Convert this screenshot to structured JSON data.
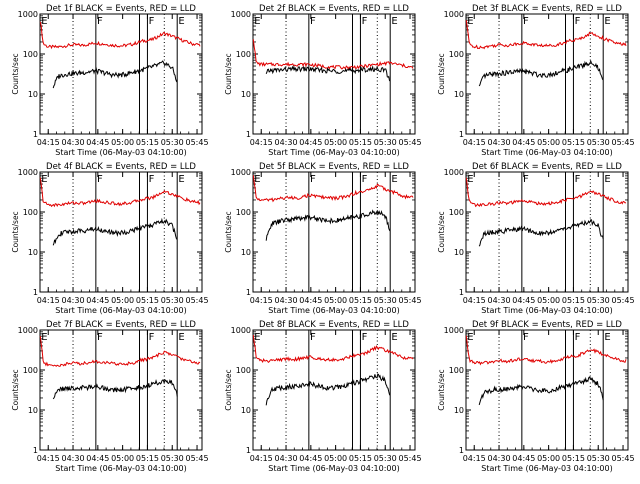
{
  "figure": {
    "ylabel": "Counts/sec",
    "xlabel": "Start Time (06-May-03 04:10:00)",
    "yticks": [
      "1",
      "10",
      "100",
      "1000"
    ],
    "xticks": [
      "04:15",
      "04:30",
      "04:45",
      "05:00",
      "05:15",
      "05:30",
      "05:45"
    ],
    "marker_labels": [
      "E",
      "F",
      "F",
      "E"
    ],
    "colors": {
      "events": "#000000",
      "lld": "#e00000"
    }
  },
  "chart_data": [
    {
      "type": "line",
      "title": "Det 1f BLACK = Events, RED = LLD",
      "xlim": [
        4.167,
        5.8
      ],
      "ylim": [
        1,
        1000
      ],
      "yscale": "log",
      "dotted_lines_hr": [
        4.5,
        5.42
      ],
      "solid_lines_hr": [
        4.73,
        5.17,
        5.25,
        5.55
      ],
      "series": [
        {
          "name": "LLD",
          "color": "red",
          "x": [
            4.17,
            4.2,
            4.25,
            4.35,
            4.5,
            4.6,
            4.73,
            4.9,
            5.0,
            5.1,
            5.2,
            5.3,
            5.42,
            5.5,
            5.6,
            5.7,
            5.78
          ],
          "y": [
            700,
            180,
            150,
            150,
            170,
            165,
            190,
            165,
            160,
            175,
            210,
            230,
            330,
            280,
            220,
            180,
            170
          ]
        },
        {
          "name": "Events",
          "color": "black",
          "x": [
            4.3,
            4.35,
            4.45,
            4.55,
            4.73,
            4.9,
            5.0,
            5.1,
            5.2,
            5.3,
            5.42,
            5.5,
            5.55
          ],
          "y": [
            15,
            28,
            32,
            33,
            38,
            30,
            30,
            35,
            40,
            48,
            60,
            45,
            20
          ]
        }
      ]
    },
    {
      "type": "line",
      "title": "Det 2f BLACK = Events, RED = LLD",
      "xlim": [
        4.167,
        5.8
      ],
      "ylim": [
        1,
        1000
      ],
      "yscale": "log",
      "dotted_lines_hr": [
        4.5,
        5.42
      ],
      "solid_lines_hr": [
        4.73,
        5.17,
        5.25,
        5.55
      ],
      "series": [
        {
          "name": "LLD",
          "color": "red",
          "x": [
            4.17,
            4.2,
            4.25,
            4.4,
            4.5,
            4.73,
            4.9,
            5.1,
            5.25,
            5.42,
            5.55,
            5.7,
            5.78
          ],
          "y": [
            250,
            60,
            55,
            55,
            55,
            55,
            48,
            46,
            48,
            55,
            60,
            50,
            45
          ]
        },
        {
          "name": "Events",
          "color": "black",
          "x": [
            4.3,
            4.32,
            4.45,
            4.6,
            4.73,
            4.9,
            5.1,
            5.25,
            5.42,
            5.5,
            5.55
          ],
          "y": [
            30,
            38,
            40,
            42,
            42,
            38,
            37,
            40,
            42,
            40,
            20
          ]
        }
      ]
    },
    {
      "type": "line",
      "title": "Det 3f BLACK = Events, RED = LLD",
      "xlim": [
        4.167,
        5.8
      ],
      "ylim": [
        1,
        1000
      ],
      "yscale": "log",
      "dotted_lines_hr": [
        4.5,
        5.42
      ],
      "solid_lines_hr": [
        4.73,
        5.17,
        5.25,
        5.55
      ],
      "series": [
        {
          "name": "LLD",
          "color": "red",
          "x": [
            4.17,
            4.2,
            4.25,
            4.35,
            4.5,
            4.6,
            4.73,
            4.9,
            5.0,
            5.1,
            5.2,
            5.3,
            5.42,
            5.5,
            5.6,
            5.7,
            5.78
          ],
          "y": [
            700,
            180,
            150,
            150,
            170,
            165,
            190,
            165,
            160,
            175,
            210,
            230,
            330,
            280,
            220,
            180,
            170
          ]
        },
        {
          "name": "Events",
          "color": "black",
          "x": [
            4.3,
            4.35,
            4.45,
            4.55,
            4.73,
            4.9,
            5.0,
            5.1,
            5.2,
            5.3,
            5.42,
            5.5,
            5.55
          ],
          "y": [
            15,
            28,
            32,
            33,
            38,
            30,
            30,
            35,
            40,
            48,
            60,
            45,
            20
          ]
        }
      ]
    },
    {
      "type": "line",
      "title": "Det 4f BLACK = Events, RED = LLD",
      "xlim": [
        4.167,
        5.8
      ],
      "ylim": [
        1,
        1000
      ],
      "yscale": "log",
      "dotted_lines_hr": [
        4.5,
        5.42
      ],
      "solid_lines_hr": [
        4.73,
        5.17,
        5.25,
        5.55
      ],
      "series": [
        {
          "name": "LLD",
          "color": "red",
          "x": [
            4.17,
            4.2,
            4.25,
            4.35,
            4.5,
            4.6,
            4.73,
            4.9,
            5.0,
            5.1,
            5.2,
            5.3,
            5.42,
            5.5,
            5.6,
            5.7,
            5.78
          ],
          "y": [
            700,
            180,
            150,
            150,
            170,
            165,
            190,
            165,
            160,
            175,
            210,
            230,
            330,
            280,
            220,
            180,
            170
          ]
        },
        {
          "name": "Events",
          "color": "black",
          "x": [
            4.3,
            4.35,
            4.45,
            4.55,
            4.73,
            4.9,
            5.0,
            5.1,
            5.2,
            5.3,
            5.42,
            5.5,
            5.55
          ],
          "y": [
            15,
            28,
            32,
            33,
            38,
            30,
            30,
            35,
            40,
            48,
            60,
            45,
            20
          ]
        }
      ]
    },
    {
      "type": "line",
      "title": "Det 5f BLACK = Events, RED = LLD",
      "xlim": [
        4.167,
        5.8
      ],
      "ylim": [
        1,
        1000
      ],
      "yscale": "log",
      "dotted_lines_hr": [
        4.5,
        5.42
      ],
      "solid_lines_hr": [
        4.73,
        5.17,
        5.25,
        5.55
      ],
      "series": [
        {
          "name": "LLD",
          "color": "red",
          "x": [
            4.17,
            4.2,
            4.25,
            4.35,
            4.5,
            4.6,
            4.73,
            4.9,
            5.0,
            5.1,
            5.2,
            5.3,
            5.42,
            5.5,
            5.6,
            5.7,
            5.78
          ],
          "y": [
            800,
            220,
            200,
            200,
            230,
            220,
            260,
            230,
            220,
            240,
            300,
            330,
            450,
            380,
            300,
            240,
            230
          ]
        },
        {
          "name": "Events",
          "color": "black",
          "x": [
            4.3,
            4.35,
            4.45,
            4.55,
            4.73,
            4.9,
            5.0,
            5.1,
            5.2,
            5.3,
            5.42,
            5.5,
            5.55
          ],
          "y": [
            20,
            50,
            60,
            65,
            75,
            62,
            60,
            68,
            75,
            85,
            100,
            80,
            35
          ]
        }
      ]
    },
    {
      "type": "line",
      "title": "Det 6f BLACK = Events, RED = LLD",
      "xlim": [
        4.167,
        5.8
      ],
      "ylim": [
        1,
        1000
      ],
      "yscale": "log",
      "dotted_lines_hr": [
        4.5,
        5.42
      ],
      "solid_lines_hr": [
        4.73,
        5.17,
        5.25,
        5.55
      ],
      "series": [
        {
          "name": "LLD",
          "color": "red",
          "x": [
            4.17,
            4.2,
            4.25,
            4.35,
            4.5,
            4.6,
            4.73,
            4.9,
            5.0,
            5.1,
            5.2,
            5.3,
            5.42,
            5.5,
            5.6,
            5.7,
            5.78
          ],
          "y": [
            700,
            180,
            150,
            150,
            170,
            165,
            190,
            165,
            160,
            175,
            210,
            230,
            330,
            280,
            220,
            180,
            170
          ]
        },
        {
          "name": "Events",
          "color": "black",
          "x": [
            4.3,
            4.35,
            4.45,
            4.55,
            4.73,
            4.9,
            5.0,
            5.1,
            5.2,
            5.3,
            5.42,
            5.5,
            5.55
          ],
          "y": [
            15,
            28,
            32,
            33,
            38,
            30,
            30,
            35,
            40,
            48,
            60,
            45,
            20
          ]
        }
      ]
    },
    {
      "type": "line",
      "title": "Det 7f BLACK = Events, RED = LLD",
      "xlim": [
        4.167,
        5.8
      ],
      "ylim": [
        1,
        1000
      ],
      "yscale": "log",
      "dotted_lines_hr": [
        4.5,
        5.42
      ],
      "solid_lines_hr": [
        4.73,
        5.17,
        5.25,
        5.55
      ],
      "series": [
        {
          "name": "LLD",
          "color": "red",
          "x": [
            4.17,
            4.2,
            4.25,
            4.35,
            4.5,
            4.6,
            4.73,
            4.9,
            5.0,
            5.1,
            5.2,
            5.3,
            5.42,
            5.5,
            5.6,
            5.7,
            5.78
          ],
          "y": [
            700,
            160,
            130,
            130,
            150,
            145,
            165,
            145,
            140,
            150,
            180,
            200,
            280,
            240,
            190,
            160,
            150
          ]
        },
        {
          "name": "Events",
          "color": "black",
          "x": [
            4.3,
            4.35,
            4.45,
            4.55,
            4.73,
            4.9,
            5.0,
            5.1,
            5.2,
            5.3,
            5.42,
            5.5,
            5.55
          ],
          "y": [
            20,
            32,
            35,
            35,
            38,
            32,
            32,
            35,
            38,
            45,
            55,
            48,
            25
          ]
        }
      ]
    },
    {
      "type": "line",
      "title": "Det 8f BLACK = Events, RED = LLD",
      "xlim": [
        4.167,
        5.8
      ],
      "ylim": [
        1,
        1000
      ],
      "yscale": "log",
      "dotted_lines_hr": [
        4.5,
        5.42
      ],
      "solid_lines_hr": [
        4.73,
        5.17,
        5.25,
        5.55
      ],
      "series": [
        {
          "name": "LLD",
          "color": "red",
          "x": [
            4.17,
            4.2,
            4.25,
            4.35,
            4.5,
            4.6,
            4.73,
            4.9,
            5.0,
            5.1,
            5.2,
            5.3,
            5.42,
            5.5,
            5.6,
            5.7,
            5.78
          ],
          "y": [
            800,
            200,
            170,
            170,
            190,
            185,
            210,
            185,
            180,
            195,
            240,
            260,
            370,
            310,
            250,
            200,
            190
          ]
        },
        {
          "name": "Events",
          "color": "black",
          "x": [
            4.3,
            4.35,
            4.45,
            4.55,
            4.73,
            4.9,
            5.0,
            5.1,
            5.2,
            5.3,
            5.42,
            5.5,
            5.55
          ],
          "y": [
            15,
            32,
            36,
            38,
            45,
            36,
            36,
            40,
            48,
            58,
            72,
            55,
            25
          ]
        }
      ]
    },
    {
      "type": "line",
      "title": "Det 9f BLACK = Events, RED = LLD",
      "xlim": [
        4.167,
        5.8
      ],
      "ylim": [
        1,
        1000
      ],
      "yscale": "log",
      "dotted_lines_hr": [
        4.5,
        5.42
      ],
      "solid_lines_hr": [
        4.73,
        5.17,
        5.25,
        5.55
      ],
      "series": [
        {
          "name": "LLD",
          "color": "red",
          "x": [
            4.17,
            4.2,
            4.25,
            4.35,
            4.5,
            4.6,
            4.73,
            4.9,
            5.0,
            5.1,
            5.2,
            5.3,
            5.42,
            5.5,
            5.6,
            5.7,
            5.78
          ],
          "y": [
            700,
            180,
            150,
            150,
            170,
            165,
            190,
            165,
            160,
            175,
            210,
            230,
            330,
            280,
            220,
            180,
            170
          ]
        },
        {
          "name": "Events",
          "color": "black",
          "x": [
            4.3,
            4.35,
            4.45,
            4.55,
            4.73,
            4.9,
            5.0,
            5.1,
            5.2,
            5.3,
            5.42,
            5.5,
            5.55
          ],
          "y": [
            15,
            28,
            32,
            33,
            38,
            30,
            30,
            35,
            40,
            48,
            60,
            45,
            20
          ]
        }
      ]
    }
  ]
}
